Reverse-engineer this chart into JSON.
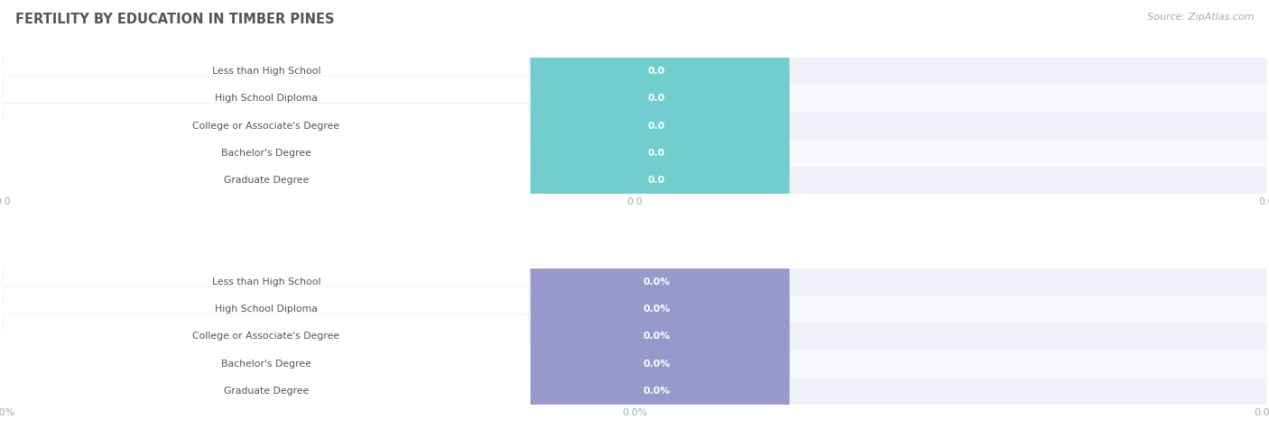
{
  "title": "FERTILITY BY EDUCATION IN TIMBER PINES",
  "source": "Source: ZipAtlas.com",
  "background_color": "#ffffff",
  "categories": [
    "Less than High School",
    "High School Diploma",
    "College or Associate's Degree",
    "Bachelor's Degree",
    "Graduate Degree"
  ],
  "top_values": [
    0.0,
    0.0,
    0.0,
    0.0,
    0.0
  ],
  "bottom_values": [
    0.0,
    0.0,
    0.0,
    0.0,
    0.0
  ],
  "top_bar_color": "#72cece",
  "bottom_bar_color": "#9898cc",
  "row_bg_odd": "#f0f0f8",
  "row_bg_even": "#f8f8fc",
  "grid_color": "#ccccdd",
  "tick_label_color": "#aaaaaa",
  "label_text_color": "#555555",
  "value_text_color": "#ffffff",
  "title_color": "#555555",
  "source_color": "#aaaaaa",
  "pill_bg": "#ffffff",
  "pill_border": "#ddddee"
}
